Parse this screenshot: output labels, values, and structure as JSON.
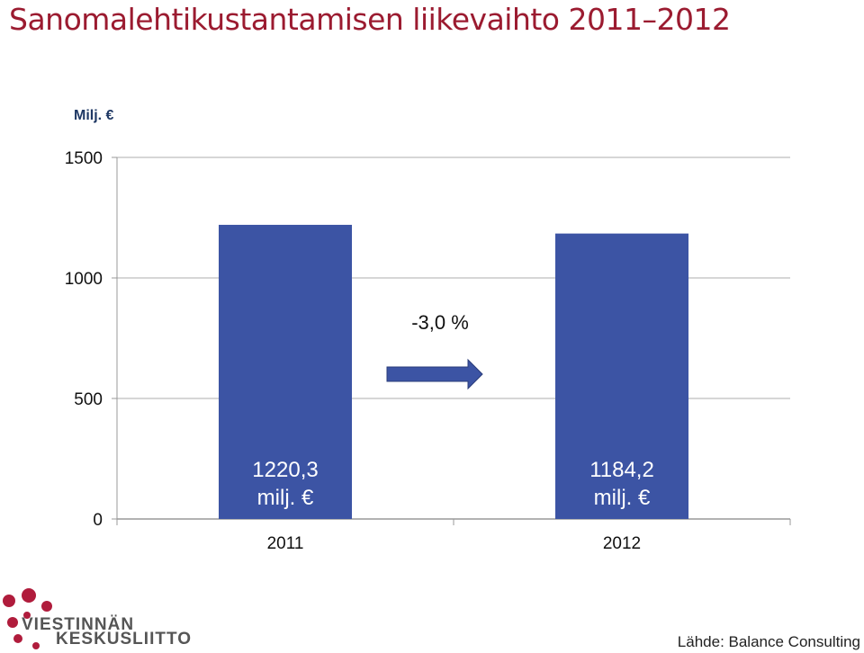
{
  "title": "Sanomalehtikustantamisen liikevaihto 2011–2012",
  "unit_label": "Milj. €",
  "annotation": "-3,0 %",
  "source": "Lähde: Balance Consulting",
  "logo": {
    "line1": "VIESTINNÄN",
    "line2": "KESKUSLIITTO"
  },
  "colors": {
    "bar": "#3c54a4",
    "title": "#9b1b30",
    "logo": "#b01c3c"
  },
  "chart_data": {
    "type": "bar",
    "categories": [
      "2011",
      "2012"
    ],
    "values": [
      1220.3,
      1184.2
    ],
    "data_labels": [
      [
        "1220,3",
        "milj. €"
      ],
      [
        "1184,2",
        "milj. €"
      ]
    ],
    "ylim": [
      0,
      1500
    ],
    "yticks": [
      0,
      500,
      1000,
      1500
    ],
    "grid": true
  }
}
